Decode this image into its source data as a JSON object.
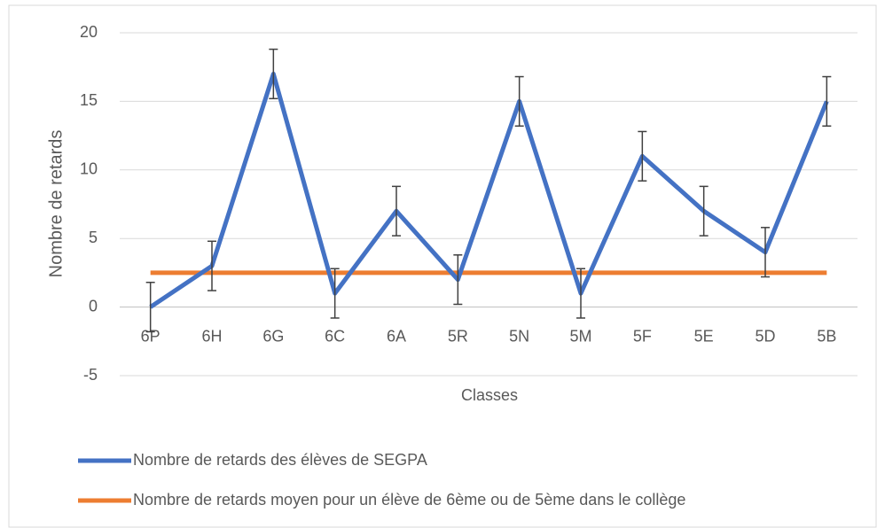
{
  "chart_data": {
    "type": "line",
    "x_label": "Classes",
    "y_label": "Nombre de retards",
    "categories": [
      "6P",
      "6H",
      "6G",
      "6C",
      "6A",
      "5R",
      "5N",
      "5M",
      "5F",
      "5E",
      "5D",
      "5B"
    ],
    "series": [
      {
        "name": "Nombre de retards des élèves de SEGPA",
        "color": "#4472c4",
        "values": [
          0,
          3,
          17,
          1,
          7,
          2,
          15,
          1,
          11,
          7,
          4,
          15
        ],
        "errors": [
          1.8,
          1.8,
          1.8,
          1.8,
          1.8,
          1.8,
          1.8,
          1.8,
          1.8,
          1.8,
          1.8,
          1.8
        ]
      },
      {
        "name": "Nombre de retards moyen pour un élève de 6ème ou de 5ème dans le collège",
        "color": "#ed7d31",
        "values": [
          2.5,
          2.5,
          2.5,
          2.5,
          2.5,
          2.5,
          2.5,
          2.5,
          2.5,
          2.5,
          2.5,
          2.5
        ]
      }
    ],
    "ylim": [
      -5,
      20
    ],
    "yticks": [
      -5,
      0,
      5,
      10,
      15,
      20
    ],
    "grid": true
  }
}
